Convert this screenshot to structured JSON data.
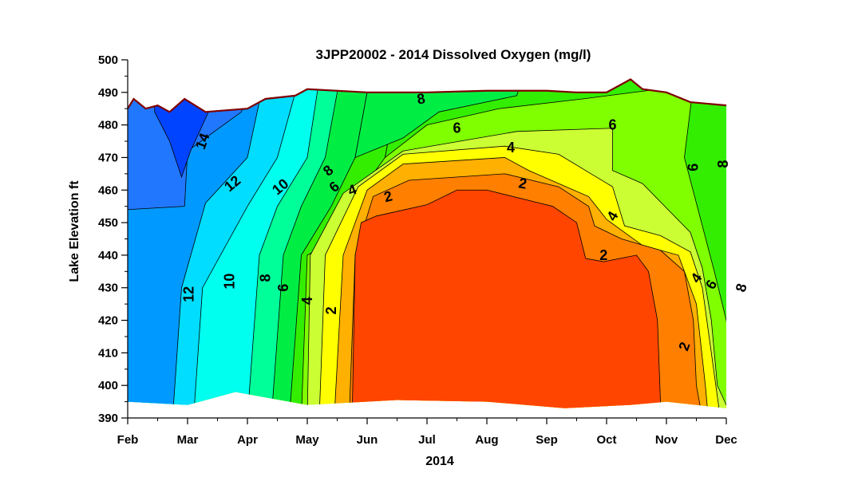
{
  "chart_data": {
    "type": "contour",
    "title": "3JPP20002  -  2014 Dissolved Oxygen (mg/l)",
    "xlabel": "2014",
    "ylabel": "Lake  Elevation  ft",
    "x_ticks": [
      "Feb",
      "Mar",
      "Apr",
      "May",
      "Jun",
      "Jul",
      "Aug",
      "Sep",
      "Oct",
      "Nov",
      "Dec"
    ],
    "ylim": [
      390,
      500
    ],
    "y_ticks": [
      390,
      400,
      410,
      420,
      430,
      440,
      450,
      460,
      470,
      480,
      490,
      500
    ],
    "contour_levels": [
      1,
      2,
      3,
      4,
      5,
      6,
      7,
      8,
      9,
      10,
      11,
      12,
      13,
      14
    ],
    "labeled_levels": [
      "14",
      "12",
      "10",
      "8",
      "6",
      "4",
      "2"
    ],
    "colors": {
      "surface_line": "#800000",
      "lt_2": "#ff4500",
      "2_3": "#ff7f00",
      "3_4": "#ffb000",
      "4_5": "#ffff00",
      "5_6": "#ccff33",
      "6_7": "#7fff00",
      "7_8": "#33ee00",
      "8_9": "#00ee44",
      "9_10": "#00ff99",
      "10_11": "#00ffee",
      "11_12": "#00ddff",
      "12_13": "#0099ff",
      "13_14": "#2277ff",
      "gt_14": "#0044ff"
    },
    "surface_elevation": [
      {
        "month": 1.0,
        "elev": 485
      },
      {
        "month": 1.1,
        "elev": 488
      },
      {
        "month": 1.3,
        "elev": 485
      },
      {
        "month": 1.5,
        "elev": 486
      },
      {
        "month": 1.7,
        "elev": 484
      },
      {
        "month": 1.95,
        "elev": 488
      },
      {
        "month": 2.3,
        "elev": 484
      },
      {
        "month": 3.0,
        "elev": 485
      },
      {
        "month": 3.3,
        "elev": 488
      },
      {
        "month": 3.8,
        "elev": 489
      },
      {
        "month": 4.0,
        "elev": 491
      },
      {
        "month": 5.0,
        "elev": 490
      },
      {
        "month": 6.0,
        "elev": 490
      },
      {
        "month": 7.0,
        "elev": 490.5
      },
      {
        "month": 8.0,
        "elev": 490.5
      },
      {
        "month": 8.5,
        "elev": 490
      },
      {
        "month": 9.0,
        "elev": 490
      },
      {
        "month": 9.4,
        "elev": 494
      },
      {
        "month": 9.6,
        "elev": 491
      },
      {
        "month": 10.0,
        "elev": 490
      },
      {
        "month": 10.4,
        "elev": 487
      },
      {
        "month": 11.0,
        "elev": 486
      }
    ]
  }
}
